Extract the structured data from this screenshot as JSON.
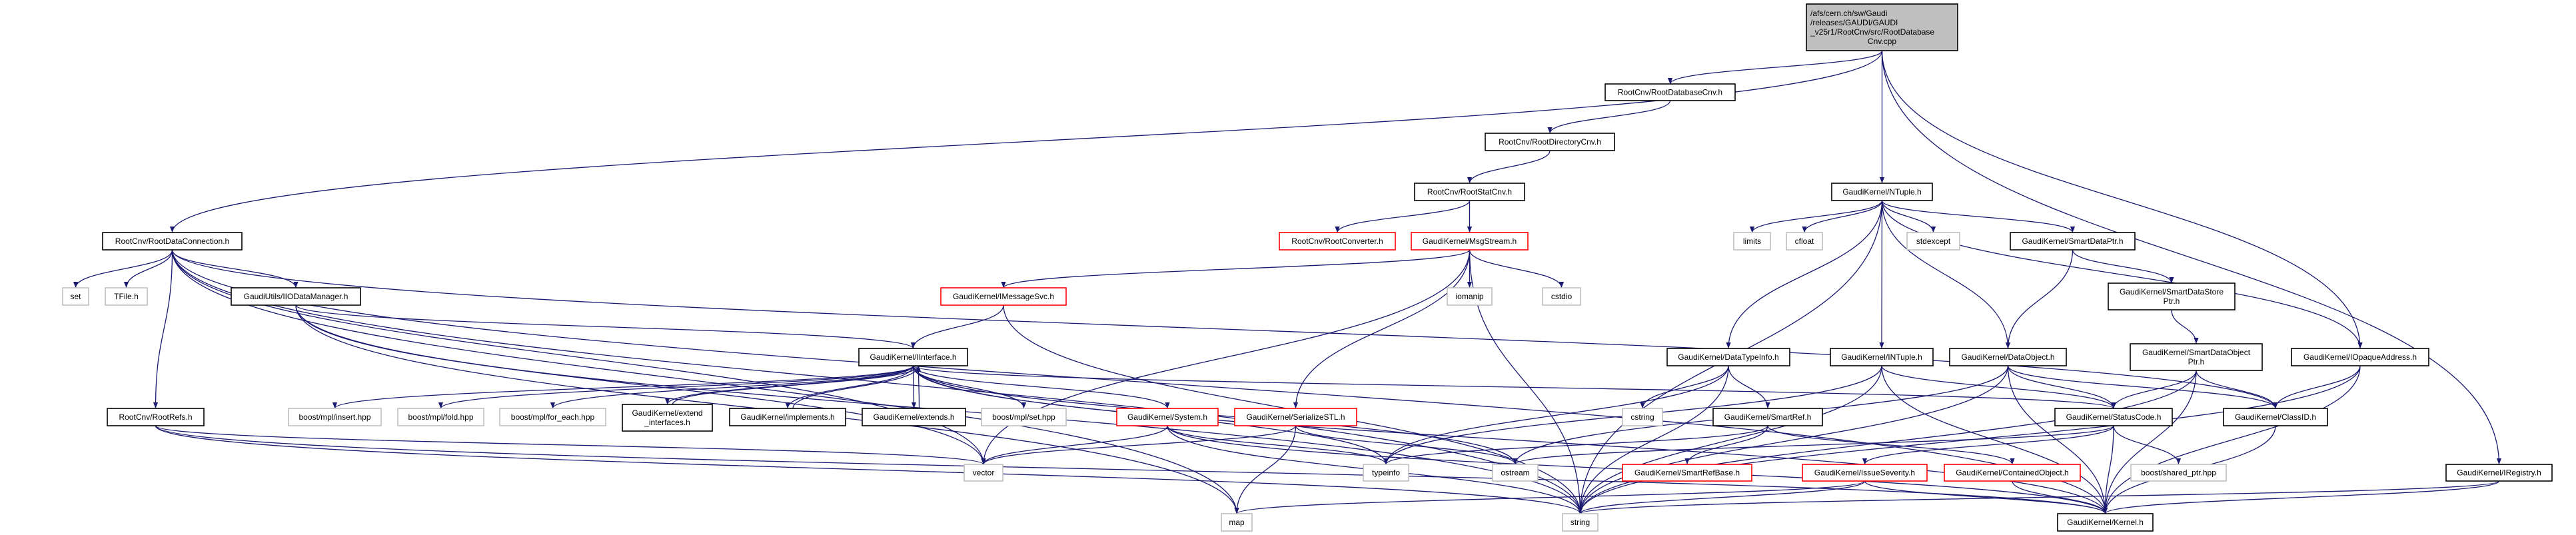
{
  "colors": {
    "edge": "#191970",
    "documented_border": "#000000",
    "external_border": "#bfbfbf",
    "undocumented_border": "#ff0000",
    "root_fill": "#bfbfbf",
    "node_fill": "#ffffff"
  },
  "nodes": [
    {
      "id": "root",
      "lines": [
        "/afs/cern.ch/sw/Gaudi",
        "/releases/GAUDI/GAUDI",
        "_v25r1/RootCnv/src/RootDatabase",
        "Cnv.cpp"
      ],
      "style": "root"
    },
    {
      "id": "rdbcnv",
      "lines": [
        "RootCnv/RootDatabaseCnv.h"
      ],
      "style": "doc"
    },
    {
      "id": "rdircnv",
      "lines": [
        "RootCnv/RootDirectoryCnv.h"
      ],
      "style": "doc"
    },
    {
      "id": "rstatcnv",
      "lines": [
        "RootCnv/RootStatCnv.h"
      ],
      "style": "doc"
    },
    {
      "id": "rconv",
      "lines": [
        "RootCnv/RootConverter.h"
      ],
      "style": "red"
    },
    {
      "id": "msgstream",
      "lines": [
        "GaudiKernel/MsgStream.h"
      ],
      "style": "red"
    },
    {
      "id": "rdc",
      "lines": [
        "RootCnv/RootDataConnection.h"
      ],
      "style": "doc"
    },
    {
      "id": "ntuple",
      "lines": [
        "GaudiKernel/NTuple.h"
      ],
      "style": "doc"
    },
    {
      "id": "limits",
      "lines": [
        "limits"
      ],
      "style": "ext"
    },
    {
      "id": "cfloat",
      "lines": [
        "cfloat"
      ],
      "style": "ext"
    },
    {
      "id": "stdexcept",
      "lines": [
        "stdexcept"
      ],
      "style": "ext"
    },
    {
      "id": "smartdataptr",
      "lines": [
        "GaudiKernel/SmartDataPtr.h"
      ],
      "style": "doc"
    },
    {
      "id": "set",
      "lines": [
        "set"
      ],
      "style": "ext"
    },
    {
      "id": "tfile",
      "lines": [
        "TFile.h"
      ],
      "style": "ext"
    },
    {
      "id": "iiodm",
      "lines": [
        "GaudiUtils/IIODataManager.h"
      ],
      "style": "doc"
    },
    {
      "id": "imsgsvc",
      "lines": [
        "GaudiKernel/IMessageSvc.h"
      ],
      "style": "red"
    },
    {
      "id": "iomanip",
      "lines": [
        "iomanip"
      ],
      "style": "ext"
    },
    {
      "id": "cstdio",
      "lines": [
        "cstdio"
      ],
      "style": "ext"
    },
    {
      "id": "sdstoreptr",
      "lines": [
        "GaudiKernel/SmartDataStore",
        "Ptr.h"
      ],
      "style": "doc"
    },
    {
      "id": "iinterface",
      "lines": [
        "GaudiKernel/IInterface.h"
      ],
      "style": "doc"
    },
    {
      "id": "datatypeinfo",
      "lines": [
        "GaudiKernel/DataTypeInfo.h"
      ],
      "style": "doc"
    },
    {
      "id": "intuple",
      "lines": [
        "GaudiKernel/INTuple.h"
      ],
      "style": "doc"
    },
    {
      "id": "dataobject",
      "lines": [
        "GaudiKernel/DataObject.h"
      ],
      "style": "doc"
    },
    {
      "id": "sdobjptr",
      "lines": [
        "GaudiKernel/SmartDataObject",
        "Ptr.h"
      ],
      "style": "doc"
    },
    {
      "id": "iopaque",
      "lines": [
        "GaudiKernel/IOpaqueAddress.h"
      ],
      "style": "doc"
    },
    {
      "id": "rootrefs",
      "lines": [
        "RootCnv/RootRefs.h"
      ],
      "style": "doc"
    },
    {
      "id": "insert",
      "lines": [
        "boost/mpl/insert.hpp"
      ],
      "style": "ext"
    },
    {
      "id": "fold",
      "lines": [
        "boost/mpl/fold.hpp"
      ],
      "style": "ext"
    },
    {
      "id": "foreach",
      "lines": [
        "boost/mpl/for_each.hpp"
      ],
      "style": "ext"
    },
    {
      "id": "extint",
      "lines": [
        "GaudiKernel/extend",
        "_interfaces.h"
      ],
      "style": "doc"
    },
    {
      "id": "implements",
      "lines": [
        "GaudiKernel/implements.h"
      ],
      "style": "doc"
    },
    {
      "id": "extends",
      "lines": [
        "GaudiKernel/extends.h"
      ],
      "style": "doc"
    },
    {
      "id": "mplset",
      "lines": [
        "boost/mpl/set.hpp"
      ],
      "style": "ext"
    },
    {
      "id": "system",
      "lines": [
        "GaudiKernel/System.h"
      ],
      "style": "red"
    },
    {
      "id": "serialize",
      "lines": [
        "GaudiKernel/SerializeSTL.h"
      ],
      "style": "red"
    },
    {
      "id": "cstring",
      "lines": [
        "cstring"
      ],
      "style": "ext"
    },
    {
      "id": "smartref",
      "lines": [
        "GaudiKernel/SmartRef.h"
      ],
      "style": "doc"
    },
    {
      "id": "statuscode",
      "lines": [
        "GaudiKernel/StatusCode.h"
      ],
      "style": "doc"
    },
    {
      "id": "classid",
      "lines": [
        "GaudiKernel/ClassID.h"
      ],
      "style": "doc"
    },
    {
      "id": "vector",
      "lines": [
        "vector"
      ],
      "style": "ext"
    },
    {
      "id": "typeinfo",
      "lines": [
        "typeinfo"
      ],
      "style": "ext"
    },
    {
      "id": "ostream",
      "lines": [
        "ostream"
      ],
      "style": "ext"
    },
    {
      "id": "smartrefbase",
      "lines": [
        "GaudiKernel/SmartRefBase.h"
      ],
      "style": "red"
    },
    {
      "id": "issue",
      "lines": [
        "GaudiKernel/IssueSeverity.h"
      ],
      "style": "red"
    },
    {
      "id": "contained",
      "lines": [
        "GaudiKernel/ContainedObject.h"
      ],
      "style": "red"
    },
    {
      "id": "sharedptr",
      "lines": [
        "boost/shared_ptr.hpp"
      ],
      "style": "ext"
    },
    {
      "id": "iregistry",
      "lines": [
        "GaudiKernel/IRegistry.h"
      ],
      "style": "doc"
    },
    {
      "id": "map",
      "lines": [
        "map"
      ],
      "style": "ext"
    },
    {
      "id": "string",
      "lines": [
        "string"
      ],
      "style": "ext"
    },
    {
      "id": "kernel",
      "lines": [
        "GaudiKernel/Kernel.h"
      ],
      "style": "doc"
    }
  ],
  "edges": [
    [
      "root",
      "rdc"
    ],
    [
      "root",
      "rdbcnv"
    ],
    [
      "root",
      "ntuple"
    ],
    [
      "root",
      "iopaque"
    ],
    [
      "root",
      "iregistry"
    ],
    [
      "rdbcnv",
      "rdircnv"
    ],
    [
      "rdircnv",
      "rstatcnv"
    ],
    [
      "rstatcnv",
      "rconv"
    ],
    [
      "rstatcnv",
      "msgstream"
    ],
    [
      "rdc",
      "set"
    ],
    [
      "rdc",
      "tfile"
    ],
    [
      "rdc",
      "iiodm"
    ],
    [
      "rdc",
      "rootrefs"
    ],
    [
      "rdc",
      "vector"
    ],
    [
      "rdc",
      "map"
    ],
    [
      "rdc",
      "string"
    ],
    [
      "rdc",
      "kernel"
    ],
    [
      "rdc",
      "classid"
    ],
    [
      "iiodm",
      "iinterface"
    ],
    [
      "iiodm",
      "vector"
    ],
    [
      "iiodm",
      "string"
    ],
    [
      "iiodm",
      "map"
    ],
    [
      "rootrefs",
      "vector"
    ],
    [
      "rootrefs",
      "string"
    ],
    [
      "rootrefs",
      "kernel"
    ],
    [
      "msgstream",
      "imsgsvc"
    ],
    [
      "msgstream",
      "iomanip"
    ],
    [
      "msgstream",
      "cstdio"
    ],
    [
      "msgstream",
      "vector"
    ],
    [
      "msgstream",
      "string"
    ],
    [
      "msgstream",
      "serialize"
    ],
    [
      "imsgsvc",
      "iinterface"
    ],
    [
      "imsgsvc",
      "string"
    ],
    [
      "iinterface",
      "insert"
    ],
    [
      "iinterface",
      "fold"
    ],
    [
      "iinterface",
      "foreach"
    ],
    [
      "iinterface",
      "extint"
    ],
    [
      "iinterface",
      "implements"
    ],
    [
      "iinterface",
      "extends"
    ],
    [
      "iinterface",
      "mplset"
    ],
    [
      "iinterface",
      "system"
    ],
    [
      "iinterface",
      "typeinfo"
    ],
    [
      "iinterface",
      "ostream"
    ],
    [
      "iinterface",
      "statuscode"
    ],
    [
      "iinterface",
      "kernel"
    ],
    [
      "extint",
      "iinterface"
    ],
    [
      "implements",
      "iinterface"
    ],
    [
      "extends",
      "iinterface"
    ],
    [
      "system",
      "vector"
    ],
    [
      "system",
      "typeinfo"
    ],
    [
      "system",
      "string"
    ],
    [
      "system",
      "kernel"
    ],
    [
      "serialize",
      "vector"
    ],
    [
      "serialize",
      "map"
    ],
    [
      "serialize",
      "ostream"
    ],
    [
      "ntuple",
      "limits"
    ],
    [
      "ntuple",
      "cfloat"
    ],
    [
      "ntuple",
      "stdexcept"
    ],
    [
      "ntuple",
      "smartdataptr"
    ],
    [
      "ntuple",
      "datatypeinfo"
    ],
    [
      "ntuple",
      "intuple"
    ],
    [
      "ntuple",
      "dataobject"
    ],
    [
      "ntuple",
      "iopaque"
    ],
    [
      "ntuple",
      "string"
    ],
    [
      "smartdataptr",
      "sdstoreptr"
    ],
    [
      "smartdataptr",
      "dataobject"
    ],
    [
      "sdstoreptr",
      "sdobjptr"
    ],
    [
      "sdobjptr",
      "statuscode"
    ],
    [
      "sdobjptr",
      "classid"
    ],
    [
      "sdobjptr",
      "kernel"
    ],
    [
      "sdobjptr",
      "string"
    ],
    [
      "datatypeinfo",
      "cstring"
    ],
    [
      "datatypeinfo",
      "smartref"
    ],
    [
      "datatypeinfo",
      "string"
    ],
    [
      "datatypeinfo",
      "typeinfo"
    ],
    [
      "intuple",
      "statuscode"
    ],
    [
      "intuple",
      "kernel"
    ],
    [
      "intuple",
      "typeinfo"
    ],
    [
      "intuple",
      "string"
    ],
    [
      "dataobject",
      "statuscode"
    ],
    [
      "dataobject",
      "classid"
    ],
    [
      "dataobject",
      "ostream"
    ],
    [
      "dataobject",
      "kernel"
    ],
    [
      "dataobject",
      "string"
    ],
    [
      "smartref",
      "smartrefbase"
    ],
    [
      "smartref",
      "contained"
    ],
    [
      "smartref",
      "typeinfo"
    ],
    [
      "statuscode",
      "issue"
    ],
    [
      "statuscode",
      "sharedptr"
    ],
    [
      "statuscode",
      "ostream"
    ],
    [
      "statuscode",
      "kernel"
    ],
    [
      "issue",
      "map"
    ],
    [
      "issue",
      "string"
    ],
    [
      "issue",
      "kernel"
    ],
    [
      "contained",
      "kernel"
    ],
    [
      "classid",
      "kernel"
    ],
    [
      "iopaque",
      "classid"
    ],
    [
      "iopaque",
      "string"
    ],
    [
      "iopaque",
      "kernel"
    ],
    [
      "iregistry",
      "string"
    ],
    [
      "iregistry",
      "kernel"
    ]
  ]
}
